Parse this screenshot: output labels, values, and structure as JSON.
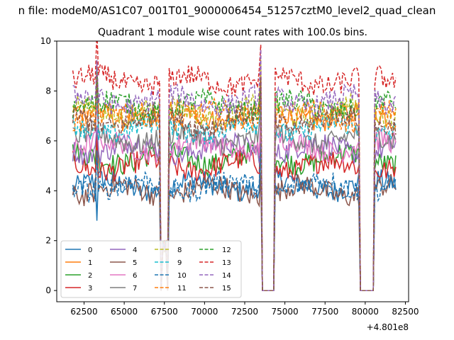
{
  "figure": {
    "suptitle": "n file: modeM0/AS1C07_001T01_9000006454_51257cztM0_level2_quad_clean"
  },
  "chart_data": {
    "type": "line",
    "title": "Quadrant 1 module wise count rates with 100.0s bins.",
    "xlabel": "",
    "ylabel": "",
    "x_offset_label": "+4.801e8",
    "xlim": [
      60800,
      82700
    ],
    "ylim": [
      -0.45,
      10
    ],
    "x_ticks": [
      62500,
      65000,
      67500,
      70000,
      72500,
      75000,
      77500,
      80000,
      82500
    ],
    "x_tick_labels": [
      "62500",
      "65000",
      "67500",
      "70000",
      "72500",
      "75000",
      "77500",
      "80000",
      "82500"
    ],
    "y_ticks": [
      0,
      2,
      4,
      6,
      8,
      10
    ],
    "y_tick_labels": [
      "0",
      "2",
      "4",
      "6",
      "8",
      "10"
    ],
    "grid": false,
    "legend": {
      "placement": "lower-left",
      "columns": 4
    },
    "x_range": [
      61800,
      81900
    ],
    "bin_seconds": 100,
    "gaps": [
      [
        67300,
        67700
      ],
      [
        73600,
        74300
      ],
      [
        79700,
        80500
      ]
    ],
    "spikes": [
      63300,
      67400,
      67650,
      73500,
      74300,
      80400
    ],
    "series": [
      {
        "name": "0",
        "color": "#1f77b4",
        "dash": "solid",
        "level": 4.2
      },
      {
        "name": "1",
        "color": "#ff7f0e",
        "dash": "solid",
        "level": 7.0
      },
      {
        "name": "2",
        "color": "#2ca02c",
        "dash": "solid",
        "level": 5.3
      },
      {
        "name": "3",
        "color": "#d62728",
        "dash": "solid",
        "level": 5.0
      },
      {
        "name": "4",
        "color": "#9467bd",
        "dash": "solid",
        "level": 5.7
      },
      {
        "name": "5",
        "color": "#8c564b",
        "dash": "solid",
        "level": 4.0
      },
      {
        "name": "6",
        "color": "#e377c2",
        "dash": "solid",
        "level": 5.8
      },
      {
        "name": "7",
        "color": "#7f7f7f",
        "dash": "solid",
        "level": 6.1
      },
      {
        "name": "8",
        "color": "#bcbd22",
        "dash": "dashed",
        "level": 7.2
      },
      {
        "name": "9",
        "color": "#17becf",
        "dash": "dashed",
        "level": 6.5
      },
      {
        "name": "10",
        "color": "#1f77b4",
        "dash": "dashed",
        "level": 4.2
      },
      {
        "name": "11",
        "color": "#ff7f0e",
        "dash": "dashed",
        "level": 7.0
      },
      {
        "name": "12",
        "color": "#2ca02c",
        "dash": "dashed",
        "level": 7.4
      },
      {
        "name": "13",
        "color": "#d62728",
        "dash": "dashed",
        "level": 8.4
      },
      {
        "name": "14",
        "color": "#9467bd",
        "dash": "dashed",
        "level": 7.6
      },
      {
        "name": "15",
        "color": "#8c564b",
        "dash": "dashed",
        "level": 6.8
      }
    ]
  }
}
